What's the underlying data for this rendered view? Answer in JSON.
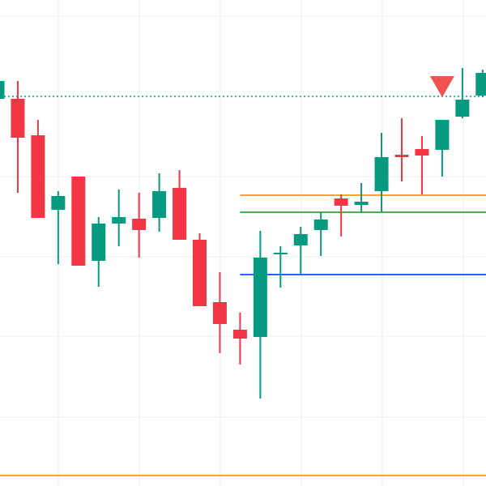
{
  "chart_data": {
    "type": "candlestick",
    "categories": [
      null,
      null,
      null,
      null,
      null,
      null,
      null,
      null,
      null,
      null,
      null,
      null,
      null,
      null,
      null,
      null,
      null,
      null,
      null,
      null,
      null,
      null,
      null,
      null,
      null
    ],
    "open": [
      478,
      478,
      433,
      341,
      382,
      278,
      324,
      330,
      331,
      368,
      304,
      227,
      193,
      184,
      286,
      297,
      316,
      355,
      347,
      364,
      409,
      416,
      415,
      456,
      482
    ],
    "high": [
      502,
      500,
      452,
      364,
      382,
      332,
      366,
      362,
      386,
      390,
      312,
      264,
      214,
      315,
      296,
      320,
      338,
      360,
      374,
      436,
      454,
      432,
      452,
      516,
      514
    ],
    "low": [
      478,
      362,
      331,
      274,
      272,
      246,
      296,
      282,
      314,
      304,
      222,
      164,
      150,
      108,
      245,
      262,
      284,
      308,
      338,
      338,
      376,
      360,
      382,
      454,
      480
    ],
    "close": [
      500,
      430,
      331,
      358,
      272,
      324,
      332,
      316,
      364,
      304,
      222,
      200,
      182,
      282,
      288,
      311,
      329,
      346,
      351,
      406,
      406,
      408,
      452,
      477,
      510
    ],
    "up_color": "#089981",
    "down_color": "#f23645",
    "ylim": [
      0,
      600
    ],
    "grid": true,
    "hlines": [
      {
        "value": 481,
        "color": "#089981",
        "style": "dotted",
        "start": 0
      },
      {
        "value": 359,
        "color": "#f7a532",
        "style": "solid",
        "start": 12
      },
      {
        "value": 338,
        "color": "#4caf50",
        "style": "solid",
        "start": 12
      },
      {
        "value": 261,
        "color": "#2962ff",
        "style": "solid",
        "start": 12
      },
      {
        "value": 13,
        "color": "#f7a532",
        "style": "solid",
        "start": 0
      }
    ],
    "markers": [
      {
        "index": 22,
        "value": 480,
        "color": "#f05350",
        "shape": "triangle-down"
      }
    ]
  }
}
